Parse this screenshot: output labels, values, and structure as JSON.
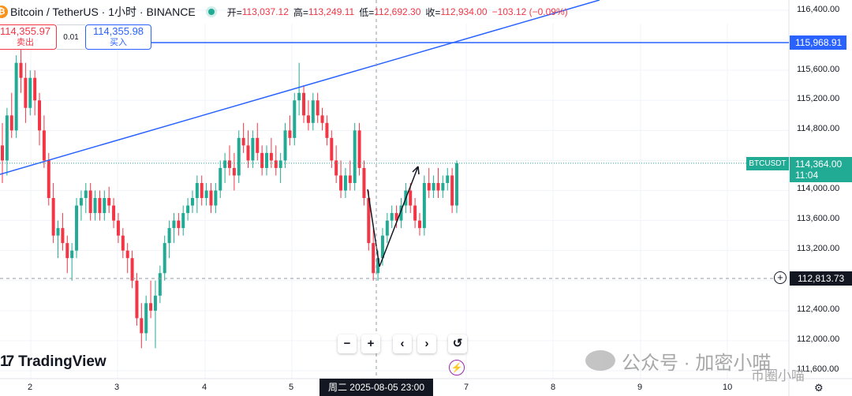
{
  "header": {
    "symbol": "Bitcoin / TetherUS · 1小时 · BINANCE",
    "logo": "₿",
    "open_label": "开=",
    "open_value": "113,037.12",
    "high_label": "高=",
    "high_value": "113,249.11",
    "low_label": "低=",
    "low_value": "112,692.30",
    "close_label": "收=",
    "close_value": "112,934.00",
    "change": "−103.12 (−0.09%)"
  },
  "trade": {
    "sell_price": "114,355.97",
    "sell_label": "卖出",
    "quantity": "0.01",
    "buy_price": "114,355.98",
    "buy_label": "买入"
  },
  "y_axis": {
    "ticks": [
      "116,400.00",
      "115,600.00",
      "115,200.00",
      "114,800.00",
      "114,000.00",
      "113,600.00",
      "113,200.00",
      "112,400.00",
      "112,000.00",
      "111,600.00"
    ],
    "hline_label": "115,968.91",
    "last_price_label": "114,364.00",
    "countdown": "11:04",
    "crosshair_label": "112,813.73",
    "symbol_tag": "BTCUSDT"
  },
  "x_axis": {
    "ticks": [
      "2",
      "3",
      "4",
      "5",
      "7",
      "8",
      "9",
      "10"
    ],
    "crosshair_label": "周二 2025-08-05   23:00"
  },
  "nav": {
    "zoom_out": "−",
    "zoom_in": "+",
    "scroll_left": "‹",
    "scroll_right": "›",
    "reset": "↺"
  },
  "branding": {
    "logo_mark": "17",
    "name": "TradingView"
  },
  "watermark": {
    "text": "公众号 · 加密小喵",
    "text2": "币圈小喵"
  },
  "colors": {
    "up": "#22ab94",
    "down": "#f23645",
    "trendline": "#2962ff",
    "hline": "#2962ff",
    "grid": "#f0f3fa"
  },
  "chart_data": {
    "type": "candlestick",
    "interval": "1h",
    "symbol": "BTCUSDT",
    "y_range": [
      111500,
      116500
    ],
    "candles": [
      {
        "o": 114600,
        "h": 114900,
        "l": 114100,
        "c": 114400
      },
      {
        "o": 114400,
        "h": 115100,
        "l": 114200,
        "c": 115000
      },
      {
        "o": 115000,
        "h": 115300,
        "l": 114700,
        "c": 114800
      },
      {
        "o": 114800,
        "h": 115800,
        "l": 114700,
        "c": 115700
      },
      {
        "o": 115700,
        "h": 116000,
        "l": 115300,
        "c": 115500
      },
      {
        "o": 115500,
        "h": 115700,
        "l": 114900,
        "c": 115100
      },
      {
        "o": 115100,
        "h": 115600,
        "l": 115000,
        "c": 115500
      },
      {
        "o": 115500,
        "h": 115600,
        "l": 115000,
        "c": 115200
      },
      {
        "o": 115200,
        "h": 115300,
        "l": 114600,
        "c": 114800
      },
      {
        "o": 114800,
        "h": 115000,
        "l": 114300,
        "c": 114400
      },
      {
        "o": 114400,
        "h": 114500,
        "l": 113800,
        "c": 113900
      },
      {
        "o": 113900,
        "h": 114100,
        "l": 113300,
        "c": 113400
      },
      {
        "o": 113400,
        "h": 113600,
        "l": 113100,
        "c": 113500
      },
      {
        "o": 113500,
        "h": 113700,
        "l": 113200,
        "c": 113300
      },
      {
        "o": 113300,
        "h": 113400,
        "l": 112900,
        "c": 113100
      },
      {
        "o": 113100,
        "h": 113300,
        "l": 112800,
        "c": 113200
      },
      {
        "o": 113200,
        "h": 113900,
        "l": 113100,
        "c": 113800
      },
      {
        "o": 113800,
        "h": 114000,
        "l": 113600,
        "c": 113900
      },
      {
        "o": 113900,
        "h": 114100,
        "l": 113700,
        "c": 114000
      },
      {
        "o": 114000,
        "h": 114100,
        "l": 113600,
        "c": 113700
      },
      {
        "o": 113700,
        "h": 114000,
        "l": 113600,
        "c": 113900
      },
      {
        "o": 113900,
        "h": 114000,
        "l": 113600,
        "c": 113700
      },
      {
        "o": 113700,
        "h": 114000,
        "l": 113600,
        "c": 113900
      },
      {
        "o": 113900,
        "h": 114050,
        "l": 113700,
        "c": 113800
      },
      {
        "o": 113800,
        "h": 113900,
        "l": 113500,
        "c": 113600
      },
      {
        "o": 113600,
        "h": 113700,
        "l": 113300,
        "c": 113400
      },
      {
        "o": 113400,
        "h": 113500,
        "l": 113100,
        "c": 113200
      },
      {
        "o": 113200,
        "h": 113300,
        "l": 112900,
        "c": 113100
      },
      {
        "o": 113100,
        "h": 113200,
        "l": 112700,
        "c": 112800
      },
      {
        "o": 112800,
        "h": 112900,
        "l": 112200,
        "c": 112300
      },
      {
        "o": 112300,
        "h": 112500,
        "l": 111900,
        "c": 112100
      },
      {
        "o": 112100,
        "h": 112600,
        "l": 112000,
        "c": 112500
      },
      {
        "o": 112500,
        "h": 112800,
        "l": 112300,
        "c": 112400
      },
      {
        "o": 112400,
        "h": 112800,
        "l": 111900,
        "c": 112600
      },
      {
        "o": 112600,
        "h": 113000,
        "l": 112500,
        "c": 112900
      },
      {
        "o": 112900,
        "h": 113400,
        "l": 112800,
        "c": 113300
      },
      {
        "o": 113300,
        "h": 113600,
        "l": 113100,
        "c": 113500
      },
      {
        "o": 113500,
        "h": 113700,
        "l": 113300,
        "c": 113600
      },
      {
        "o": 113600,
        "h": 113700,
        "l": 113400,
        "c": 113500
      },
      {
        "o": 113500,
        "h": 113800,
        "l": 113400,
        "c": 113700
      },
      {
        "o": 113700,
        "h": 113900,
        "l": 113600,
        "c": 113800
      },
      {
        "o": 113800,
        "h": 114000,
        "l": 113700,
        "c": 113900
      },
      {
        "o": 113900,
        "h": 114200,
        "l": 113700,
        "c": 114100
      },
      {
        "o": 114100,
        "h": 114200,
        "l": 113800,
        "c": 113900
      },
      {
        "o": 113900,
        "h": 114100,
        "l": 113800,
        "c": 114000
      },
      {
        "o": 114000,
        "h": 114100,
        "l": 113700,
        "c": 113800
      },
      {
        "o": 113800,
        "h": 114100,
        "l": 113700,
        "c": 114000
      },
      {
        "o": 114000,
        "h": 114400,
        "l": 113900,
        "c": 114300
      },
      {
        "o": 114300,
        "h": 114500,
        "l": 114100,
        "c": 114400
      },
      {
        "o": 114400,
        "h": 114600,
        "l": 114200,
        "c": 114300
      },
      {
        "o": 114300,
        "h": 114500,
        "l": 114000,
        "c": 114200
      },
      {
        "o": 114200,
        "h": 114800,
        "l": 114100,
        "c": 114700
      },
      {
        "o": 114700,
        "h": 114900,
        "l": 114500,
        "c": 114600
      },
      {
        "o": 114600,
        "h": 114800,
        "l": 114300,
        "c": 114400
      },
      {
        "o": 114400,
        "h": 114800,
        "l": 114300,
        "c": 114700
      },
      {
        "o": 114700,
        "h": 114900,
        "l": 114400,
        "c": 114500
      },
      {
        "o": 114500,
        "h": 114600,
        "l": 114200,
        "c": 114300
      },
      {
        "o": 114300,
        "h": 114600,
        "l": 114200,
        "c": 114500
      },
      {
        "o": 114500,
        "h": 114700,
        "l": 114300,
        "c": 114400
      },
      {
        "o": 114400,
        "h": 114600,
        "l": 114200,
        "c": 114300
      },
      {
        "o": 114300,
        "h": 114500,
        "l": 114100,
        "c": 114400
      },
      {
        "o": 114400,
        "h": 114900,
        "l": 114300,
        "c": 114800
      },
      {
        "o": 114800,
        "h": 115000,
        "l": 114600,
        "c": 114700
      },
      {
        "o": 114700,
        "h": 115300,
        "l": 114600,
        "c": 115200
      },
      {
        "o": 115200,
        "h": 115700,
        "l": 115000,
        "c": 115300
      },
      {
        "o": 115300,
        "h": 115400,
        "l": 114900,
        "c": 115000
      },
      {
        "o": 115000,
        "h": 115200,
        "l": 114800,
        "c": 114900
      },
      {
        "o": 114900,
        "h": 115300,
        "l": 114800,
        "c": 115200
      },
      {
        "o": 115200,
        "h": 115300,
        "l": 114900,
        "c": 115000
      },
      {
        "o": 115000,
        "h": 115100,
        "l": 114800,
        "c": 114900
      },
      {
        "o": 114900,
        "h": 115000,
        "l": 114600,
        "c": 114700
      },
      {
        "o": 114700,
        "h": 114800,
        "l": 114300,
        "c": 114400
      },
      {
        "o": 114400,
        "h": 114600,
        "l": 114100,
        "c": 114200
      },
      {
        "o": 114200,
        "h": 114400,
        "l": 113900,
        "c": 114000
      },
      {
        "o": 114000,
        "h": 114300,
        "l": 113900,
        "c": 114200
      },
      {
        "o": 114200,
        "h": 114400,
        "l": 114000,
        "c": 114100
      },
      {
        "o": 114100,
        "h": 114900,
        "l": 114000,
        "c": 114800
      },
      {
        "o": 114800,
        "h": 114900,
        "l": 114200,
        "c": 114300
      },
      {
        "o": 114300,
        "h": 114400,
        "l": 113800,
        "c": 113900
      },
      {
        "o": 113900,
        "h": 114000,
        "l": 113200,
        "c": 113300
      },
      {
        "o": 113300,
        "h": 113500,
        "l": 112800,
        "c": 112900
      },
      {
        "o": 112900,
        "h": 113200,
        "l": 112800,
        "c": 113100
      },
      {
        "o": 113100,
        "h": 113500,
        "l": 113000,
        "c": 113400
      },
      {
        "o": 113400,
        "h": 113700,
        "l": 113300,
        "c": 113600
      },
      {
        "o": 113600,
        "h": 113800,
        "l": 113500,
        "c": 113700
      },
      {
        "o": 113700,
        "h": 113800,
        "l": 113500,
        "c": 113600
      },
      {
        "o": 113600,
        "h": 113900,
        "l": 113500,
        "c": 113800
      },
      {
        "o": 113800,
        "h": 114100,
        "l": 113700,
        "c": 114000
      },
      {
        "o": 114000,
        "h": 114100,
        "l": 113700,
        "c": 113800
      },
      {
        "o": 113800,
        "h": 113900,
        "l": 113500,
        "c": 113600
      },
      {
        "o": 113600,
        "h": 113700,
        "l": 113400,
        "c": 113500
      },
      {
        "o": 113500,
        "h": 114200,
        "l": 113400,
        "c": 114100
      },
      {
        "o": 114100,
        "h": 114300,
        "l": 113900,
        "c": 114000
      },
      {
        "o": 114000,
        "h": 114200,
        "l": 113900,
        "c": 114100
      },
      {
        "o": 114100,
        "h": 114300,
        "l": 113900,
        "c": 114000
      },
      {
        "o": 114000,
        "h": 114200,
        "l": 113900,
        "c": 114100
      },
      {
        "o": 114100,
        "h": 114300,
        "l": 114000,
        "c": 114200
      },
      {
        "o": 114200,
        "h": 114300,
        "l": 113700,
        "c": 113800
      },
      {
        "o": 113800,
        "h": 114400,
        "l": 113700,
        "c": 114364
      }
    ]
  }
}
